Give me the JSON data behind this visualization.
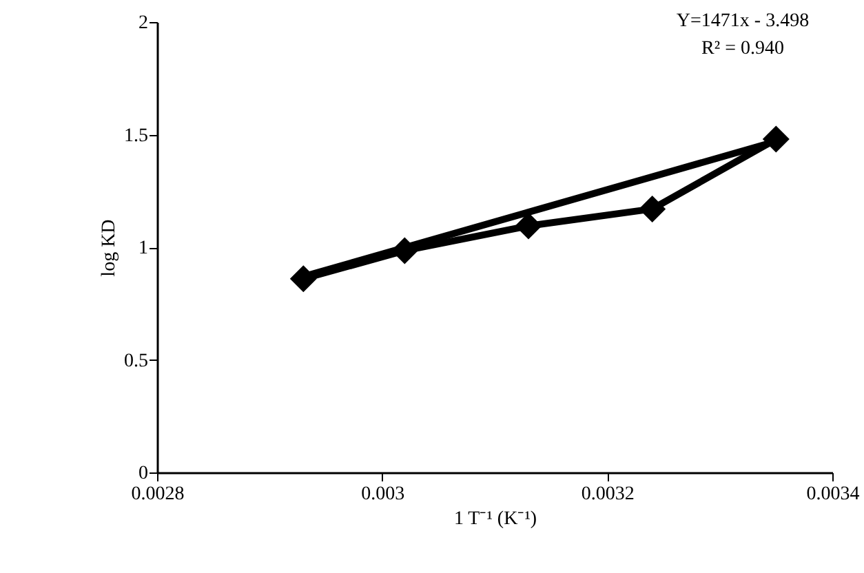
{
  "chart_data": {
    "type": "line",
    "xlabel": "1 T⁻¹ (K⁻¹)",
    "ylabel": "log KD",
    "annotations": [
      "Y=1471x - 3.498",
      "R² = 0.940"
    ],
    "x": [
      0.00293,
      0.00302,
      0.00313,
      0.00324,
      0.00335
    ],
    "xlim": [
      0.0028,
      0.0034
    ],
    "xticks": [
      0.0028,
      0.003,
      0.0032,
      0.0034
    ],
    "ylim": [
      0,
      2
    ],
    "yticks": [
      0,
      0.5,
      1,
      1.5,
      2
    ],
    "marker": "diamond",
    "line_style": "solid",
    "series": [
      {
        "color": "#000000",
        "values": [
          0.86,
          0.985,
          1.095,
          1.17,
          1.48
        ]
      },
      {
        "type": "line",
        "color": "#000000",
        "marker": "none",
        "x": [
          0.00293,
          0.00335
        ],
        "values": [
          0.87,
          1.47
        ]
      }
    ]
  }
}
